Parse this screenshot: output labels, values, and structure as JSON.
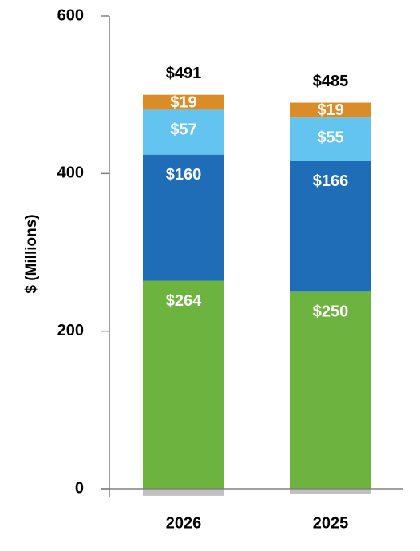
{
  "chart_data": {
    "type": "stacked-bar",
    "y_label": "$ (Millions)",
    "categories": [
      "2026",
      "2025"
    ],
    "series": [
      {
        "color": "#c0c0c0",
        "values": [
          -9,
          -7
        ]
      },
      {
        "color": "#6db33f",
        "values": [
          264,
          250
        ],
        "value_labels": [
          "$264",
          "$250"
        ]
      },
      {
        "color": "#1f6db6",
        "values": [
          160,
          166
        ],
        "value_labels": [
          "$160",
          "$166"
        ]
      },
      {
        "color": "#64c4f0",
        "values": [
          57,
          55
        ],
        "value_labels": [
          "$57",
          "$55"
        ]
      },
      {
        "color": "#d98c27",
        "values": [
          19,
          19
        ],
        "value_labels": [
          "$19",
          "$19"
        ]
      }
    ],
    "totals": [
      491,
      485
    ],
    "total_labels": [
      "$491",
      "$485"
    ],
    "ylim": [
      -10,
      600
    ],
    "yticks": [
      0,
      200,
      400,
      600
    ]
  }
}
